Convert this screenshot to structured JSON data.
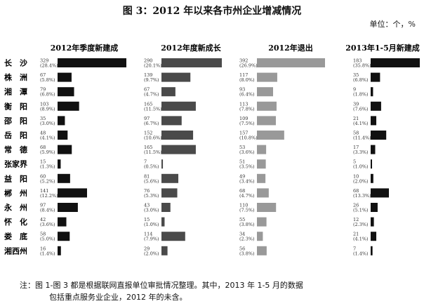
{
  "figure": {
    "title": "图 3：2012 年以来各市州企业增减情况",
    "unit": "单位：个，%"
  },
  "note": {
    "line1": "注：图 1-图 3 都是根据联网直报单位审批情况整理。其中，2013 年 1-5 月的数据",
    "line2": "包括重点服务业企业，2012 年的未含。"
  },
  "colors": {
    "black": "#111111",
    "dark_gray": "#4a4a4a",
    "light_gray": "#999999"
  },
  "chart_data": {
    "type": "bar",
    "orientation": "horizontal",
    "categories": [
      "长　沙",
      "株　洲",
      "湘　潭",
      "衡　阳",
      "邵　阳",
      "岳　阳",
      "常　德",
      "张家界",
      "益　阳",
      "郴　州",
      "永　州",
      "怀　化",
      "娄　底",
      "湘西州"
    ],
    "panels": [
      {
        "title": "2012年季度新建成",
        "values": [
          329,
          67,
          79,
          103,
          35,
          48,
          68,
          15,
          60,
          141,
          97,
          42,
          58,
          16
        ],
        "labels": [
          "(28.4%)",
          "(5.8%)",
          "(6.8%)",
          "(8.9%)",
          "(3.0%)",
          "(4.1%)",
          "(5.9%)",
          "(1.3%)",
          "(5.2%)",
          "(12.2%)",
          "(8.4%)",
          "(3.6%)",
          "(5.0%)",
          "(1.4%)"
        ],
        "color": "#111111",
        "xlim": [
          0,
          329
        ]
      },
      {
        "title": "2012年度新成长",
        "values": [
          290,
          139,
          67,
          165,
          97,
          152,
          165,
          7,
          81,
          76,
          43,
          15,
          114,
          29
        ],
        "labels": [
          "(20.1%)",
          "(9.7%)",
          "(4.7%)",
          "(11.5%)",
          "(6.7%)",
          "(10.6%)",
          "(11.5%)",
          "(0.5%)",
          "(5.6%)",
          "(5.3%)",
          "(3.0%)",
          "(1.0%)",
          "(7.9%)",
          "(2.0%)"
        ],
        "color": "#4a4a4a",
        "xlim": [
          0,
          290
        ]
      },
      {
        "title": "2012年退出",
        "values": [
          392,
          117,
          93,
          113,
          109,
          157,
          53,
          51,
          49,
          68,
          110,
          55,
          34,
          56
        ],
        "labels": [
          "(26.9%)",
          "(8.0%)",
          "(6.4%)",
          "(7.8%)",
          "(7.5%)",
          "(10.8%)",
          "(3.6%)",
          "(3.5%)",
          "(3.4%)",
          "(4.7%)",
          "(7.5%)",
          "(3.8%)",
          "(2.3%)",
          "(3.8%)"
        ],
        "color": "#999999",
        "xlim": [
          0,
          392
        ]
      },
      {
        "title": "2013年1-5月新建成",
        "values": [
          183,
          35,
          9,
          39,
          21,
          58,
          17,
          5,
          10,
          68,
          26,
          12,
          21,
          7
        ],
        "labels": [
          "(35.8%)",
          "(6.8%)",
          "(1.8%)",
          "(7.6%)",
          "(4.1%)",
          "(11.4%)",
          "(3.3%)",
          "(1.0%)",
          "(2.0%)",
          "(13.3%)",
          "(5.1%)",
          "(2.3%)",
          "(4.1%)",
          "(1.4%)"
        ],
        "color": "#111111",
        "xlim": [
          0,
          183
        ]
      }
    ]
  }
}
